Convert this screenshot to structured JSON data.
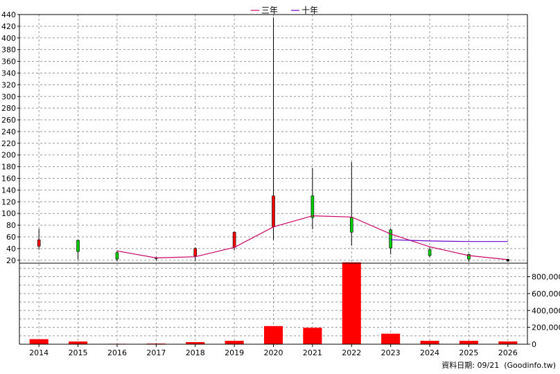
{
  "chart_data": [
    {
      "type": "candlestick",
      "x": [
        "2014",
        "2015",
        "2016",
        "2017",
        "2018",
        "2019",
        "2020",
        "2021",
        "2022",
        "2023",
        "2024",
        "2025",
        "2026"
      ],
      "y_ticks": [
        20,
        40,
        60,
        80,
        100,
        120,
        140,
        160,
        180,
        200,
        220,
        240,
        260,
        280,
        300,
        320,
        340,
        360,
        380,
        400,
        420,
        440
      ],
      "ylim": [
        15,
        440
      ],
      "grid": true,
      "legend_position": "top-center",
      "candles": [
        {
          "x": "2014",
          "open": 44,
          "close": 55,
          "high": 74,
          "low": 38
        },
        {
          "x": "2015",
          "open": 54,
          "close": 35,
          "high": 55,
          "low": 21
        },
        {
          "x": "2016",
          "open": 33,
          "close": 22,
          "high": 37,
          "low": 18
        },
        {
          "x": "2017",
          "open": 24,
          "close": 23,
          "high": 26,
          "low": 20
        },
        {
          "x": "2018",
          "open": 27,
          "close": 40,
          "high": 42,
          "low": 19
        },
        {
          "x": "2019",
          "open": 42,
          "close": 68,
          "high": 69,
          "low": 37
        },
        {
          "x": "2020",
          "open": 77,
          "close": 130,
          "high": 435,
          "low": 55
        },
        {
          "x": "2021",
          "open": 130,
          "close": 93,
          "high": 178,
          "low": 73
        },
        {
          "x": "2022",
          "open": 93,
          "close": 68,
          "high": 188,
          "low": 45
        },
        {
          "x": "2023",
          "open": 72,
          "close": 41,
          "high": 74,
          "low": 30
        },
        {
          "x": "2024",
          "open": 38,
          "close": 28,
          "high": 42,
          "low": 25
        },
        {
          "x": "2025",
          "open": 30,
          "close": 22,
          "high": 31,
          "low": 17
        },
        {
          "x": "2026",
          "open": 21,
          "close": 20,
          "high": 21,
          "low": 19
        }
      ],
      "colors": {
        "up": "#ff0000",
        "down": "#00cc00",
        "wick": "#000000",
        "grid": "#999999"
      },
      "series": [
        {
          "name": "三年",
          "color": "#cc0066",
          "points": [
            {
              "x": "2016",
              "y": 36
            },
            {
              "x": "2017",
              "y": 24
            },
            {
              "x": "2018",
              "y": 26
            },
            {
              "x": "2019",
              "y": 42
            },
            {
              "x": "2020",
              "y": 77
            },
            {
              "x": "2021",
              "y": 96
            },
            {
              "x": "2022",
              "y": 94
            },
            {
              "x": "2023",
              "y": 65
            },
            {
              "x": "2024",
              "y": 43
            },
            {
              "x": "2025",
              "y": 28
            },
            {
              "x": "2026",
              "y": 21
            }
          ]
        },
        {
          "name": "十年",
          "color": "#6600cc",
          "points": [
            {
              "x": "2023",
              "y": 55
            },
            {
              "x": "2024",
              "y": 53
            },
            {
              "x": "2025",
              "y": 52
            },
            {
              "x": "2026",
              "y": 52
            }
          ]
        }
      ]
    },
    {
      "type": "bar",
      "categories": [
        "2014",
        "2015",
        "2016",
        "2017",
        "2018",
        "2019",
        "2020",
        "2021",
        "2022",
        "2023",
        "2024",
        "2025",
        "2026"
      ],
      "values": [
        60000,
        32000,
        5000,
        8000,
        25000,
        40000,
        215000,
        195000,
        970000,
        125000,
        40000,
        40000,
        33000
      ],
      "y_ticks": [
        0,
        200000,
        400000,
        600000,
        800000
      ],
      "y_tick_labels": [
        "0",
        "200,000",
        "400,000",
        "600,000",
        "800,000"
      ],
      "ylim": [
        0,
        960000
      ],
      "color": "#ff0000",
      "grid": true
    }
  ],
  "footer": {
    "source_text": "資料日期: 09/21  (Goodinfo.tw)"
  }
}
